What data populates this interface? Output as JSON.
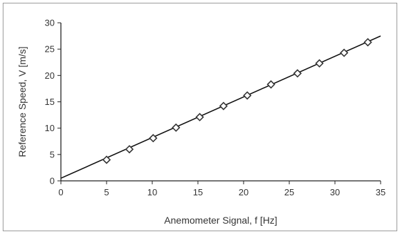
{
  "chart_data": {
    "type": "scatter",
    "title": "",
    "xlabel": "Anemometer Signal, f [Hz]",
    "ylabel": "Reference Speed, V [m/s]",
    "xlim": [
      0,
      35
    ],
    "ylim": [
      0,
      30
    ],
    "xticks": [
      "0",
      "5",
      "10",
      "15",
      "20",
      "25",
      "30",
      "35"
    ],
    "yticks": [
      "0",
      "5",
      "10",
      "15",
      "20",
      "25",
      "30"
    ],
    "grid": false,
    "legend": "none",
    "series": [
      {
        "marker": "diamond",
        "x": [
          5.0,
          7.5,
          10.1,
          12.6,
          15.2,
          17.8,
          20.4,
          23.0,
          25.9,
          28.3,
          31.0,
          33.6
        ],
        "y": [
          4.0,
          6.0,
          8.1,
          10.1,
          12.1,
          14.2,
          16.2,
          18.3,
          20.4,
          22.3,
          24.3,
          26.3
        ]
      }
    ],
    "fit_line": {
      "x": [
        0,
        35
      ],
      "y": [
        0.5,
        27.5
      ]
    },
    "colors": {
      "marker": "#333333",
      "line": "#111111",
      "axis": "#222222"
    }
  }
}
